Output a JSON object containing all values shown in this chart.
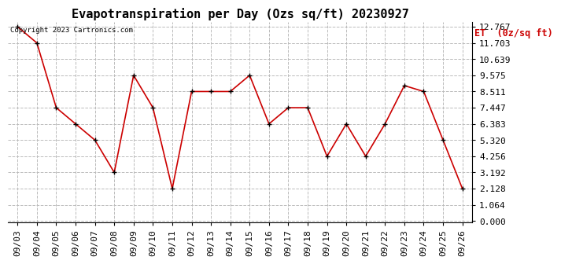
{
  "title": "Evapotranspiration per Day (Ozs sq/ft) 20230927",
  "copyright_text": "Copyright 2023 Cartronics.com",
  "legend_label": "ET  (0z/sq ft)",
  "dates": [
    "09/03",
    "09/04",
    "09/05",
    "09/06",
    "09/07",
    "09/08",
    "09/09",
    "09/10",
    "09/11",
    "09/12",
    "09/13",
    "09/14",
    "09/15",
    "09/16",
    "09/17",
    "09/18",
    "09/19",
    "09/20",
    "09/21",
    "09/22",
    "09/23",
    "09/24",
    "09/25",
    "09/26"
  ],
  "values": [
    12.767,
    11.703,
    7.447,
    6.383,
    5.32,
    3.192,
    9.575,
    7.447,
    2.128,
    8.511,
    8.511,
    8.511,
    9.575,
    6.383,
    7.447,
    7.447,
    4.256,
    6.383,
    4.256,
    6.383,
    8.9,
    8.511,
    5.32,
    2.128
  ],
  "yticks": [
    0.0,
    1.064,
    2.128,
    3.192,
    4.256,
    5.32,
    6.383,
    7.447,
    8.511,
    9.575,
    10.639,
    11.703,
    12.767
  ],
  "ylim": [
    0.0,
    12.767
  ],
  "line_color": "#cc0000",
  "marker_color": "#000000",
  "background_color": "#ffffff",
  "grid_color": "#bbbbbb",
  "title_fontsize": 11,
  "tick_fontsize": 8,
  "legend_color": "#cc0000"
}
